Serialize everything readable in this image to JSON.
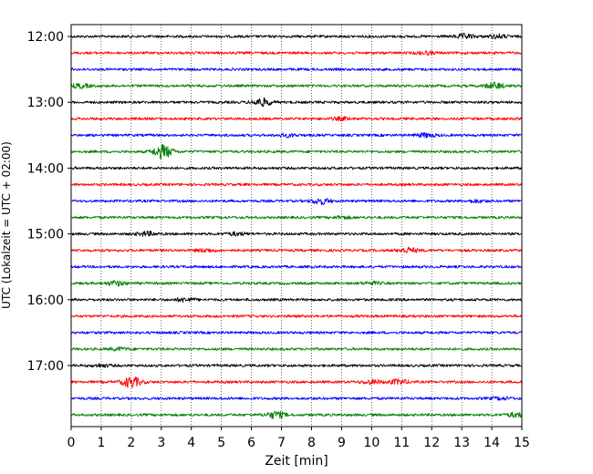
{
  "chart_data": {
    "type": "line",
    "title": "",
    "xlabel": "Zeit  [min]",
    "ylabel": "UTC (Lokalzeit = UTC + 02:00)",
    "xlim": [
      0,
      15
    ],
    "x_ticks": [
      "0",
      "1",
      "2",
      "3",
      "4",
      "5",
      "6",
      "7",
      "8",
      "9",
      "10",
      "11",
      "12",
      "13",
      "14",
      "15"
    ],
    "y_ticks": [
      {
        "label": "12:00",
        "trace": 0
      },
      {
        "label": "13:00",
        "trace": 4
      },
      {
        "label": "14:00",
        "trace": 8
      },
      {
        "label": "15:00",
        "trace": 12
      },
      {
        "label": "16:00",
        "trace": 16
      },
      {
        "label": "17:00",
        "trace": 20
      }
    ],
    "grid": "vertical dotted at each minute",
    "color_cycle": [
      "#000000",
      "#ff0000",
      "#0000ff",
      "#008000"
    ],
    "series": [
      {
        "start_utc": "12:00",
        "events": [
          [
            13.1,
            2.2
          ],
          [
            14.2,
            1.8
          ]
        ]
      },
      {
        "start_utc": "12:15",
        "events": [
          [
            11.8,
            1.4
          ]
        ]
      },
      {
        "start_utc": "12:30",
        "events": []
      },
      {
        "start_utc": "12:45",
        "events": [
          [
            0.3,
            2.0
          ],
          [
            14.1,
            3.0
          ]
        ]
      },
      {
        "start_utc": "13:00",
        "events": [
          [
            6.35,
            4.0
          ]
        ]
      },
      {
        "start_utc": "13:15",
        "events": [
          [
            9.0,
            1.3
          ]
        ]
      },
      {
        "start_utc": "13:30",
        "events": [
          [
            7.2,
            1.5
          ],
          [
            11.8,
            2.0
          ]
        ]
      },
      {
        "start_utc": "13:45",
        "events": [
          [
            3.05,
            7.0
          ]
        ]
      },
      {
        "start_utc": "14:00",
        "events": []
      },
      {
        "start_utc": "14:15",
        "events": []
      },
      {
        "start_utc": "14:30",
        "events": [
          [
            8.3,
            3.0
          ],
          [
            13.5,
            1.3
          ]
        ]
      },
      {
        "start_utc": "14:45",
        "events": [
          [
            9.0,
            1.3
          ]
        ]
      },
      {
        "start_utc": "15:00",
        "events": [
          [
            2.5,
            2.0
          ],
          [
            5.5,
            1.5
          ]
        ]
      },
      {
        "start_utc": "15:15",
        "events": [
          [
            4.5,
            1.5
          ],
          [
            11.2,
            2.5
          ]
        ]
      },
      {
        "start_utc": "15:30",
        "events": []
      },
      {
        "start_utc": "15:45",
        "events": [
          [
            1.5,
            2.2
          ],
          [
            10.0,
            1.2
          ]
        ]
      },
      {
        "start_utc": "16:00",
        "events": [
          [
            3.8,
            1.8
          ]
        ]
      },
      {
        "start_utc": "16:15",
        "events": []
      },
      {
        "start_utc": "16:30",
        "events": []
      },
      {
        "start_utc": "16:45",
        "events": [
          [
            1.6,
            1.3
          ]
        ]
      },
      {
        "start_utc": "17:00",
        "events": [
          [
            1.0,
            1.3
          ]
        ]
      },
      {
        "start_utc": "17:15",
        "events": [
          [
            2.0,
            5.5
          ],
          [
            10.0,
            2.0
          ],
          [
            10.9,
            2.5
          ]
        ]
      },
      {
        "start_utc": "17:30",
        "events": [
          [
            14.3,
            1.3
          ]
        ]
      },
      {
        "start_utc": "17:45",
        "events": [
          [
            6.8,
            3.5
          ],
          [
            14.8,
            2.2
          ]
        ]
      }
    ]
  }
}
